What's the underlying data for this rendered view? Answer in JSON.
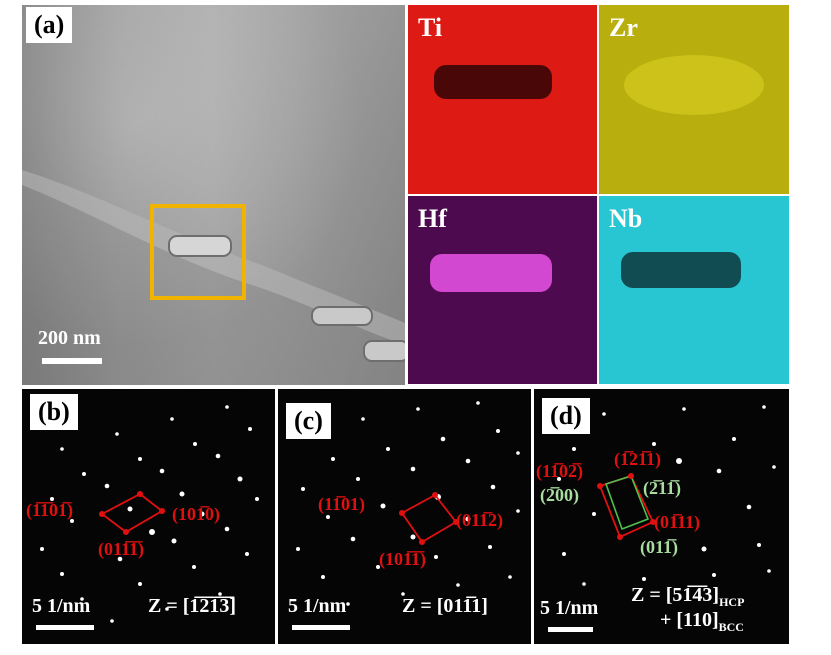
{
  "panel_a": {
    "label": "(a)",
    "scale_text": "200 nm",
    "maps": [
      {
        "element": "Ti",
        "color": "#e01515"
      },
      {
        "element": "Zr",
        "color": "#c8c010"
      },
      {
        "element": "Hf",
        "color": "#8a1c8c"
      },
      {
        "element": "Nb",
        "color": "#22c8d4"
      }
    ],
    "highlight_color": "#f0b400"
  },
  "panel_b": {
    "label": "(b)",
    "scale_text": "5 1/nm",
    "zone": "Z = [1̅2̅1̅3̅]",
    "indices": [
      "(1̅1̅01̅)",
      "(101̅0)",
      "(011̅1̅)"
    ]
  },
  "panel_c": {
    "label": "(c)",
    "scale_text": "5 1/nm",
    "zone": "Z = [011̅1]",
    "indices": [
      "(11̅01)",
      "(011̅2)",
      "(101̅1̅)"
    ]
  },
  "panel_d": {
    "label": "(d)",
    "scale_text": "5 1/nm",
    "zone_line1": "Z = [51̅4̅3]",
    "zone_sub1": "HCP",
    "zone_line2": "+ [110]",
    "zone_sub2": "BCC",
    "red_indices": [
      "(11̅02̅)",
      "(1̅21̅1)",
      "(01̅11)"
    ],
    "green_indices": [
      "(2̅00)",
      "(2̅11̅)",
      "(011̅)"
    ]
  }
}
